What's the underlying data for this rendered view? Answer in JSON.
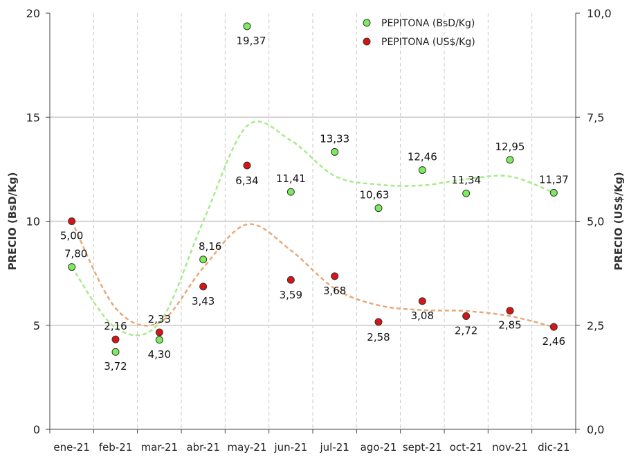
{
  "chart_data": {
    "type": "scatter",
    "categories": [
      "ene-21",
      "feb-21",
      "mar-21",
      "abr-21",
      "may-21",
      "jun-21",
      "jul-21",
      "ago-21",
      "sept-21",
      "oct-21",
      "nov-21",
      "dic-21"
    ],
    "series": [
      {
        "name": "PEPITONA (BsD/Kg)",
        "axis": "left",
        "color": "#7CEB5C",
        "trend_color": "#A6EB8A",
        "values": [
          7.8,
          3.72,
          4.3,
          8.16,
          19.37,
          11.41,
          13.33,
          10.63,
          12.46,
          11.34,
          12.95,
          11.37
        ],
        "labels": [
          "7,80",
          "3,72",
          "4,30",
          "8,16",
          "19,37",
          "11,41",
          "13,33",
          "10,63",
          "12,46",
          "11,34",
          "12,95",
          "11,37"
        ]
      },
      {
        "name": "PEPITONA (US$/Kg)",
        "axis": "right",
        "color": "#D81414",
        "trend_color": "#E8A878",
        "values": [
          5.0,
          2.16,
          2.33,
          3.43,
          6.34,
          3.59,
          3.68,
          2.58,
          3.08,
          2.72,
          2.85,
          2.46
        ],
        "labels": [
          "5,00",
          "2,16",
          "2,33",
          "3,43",
          "6,34",
          "3,59",
          "3,68",
          "2,58",
          "3,08",
          "2,72",
          "2,85",
          "2,46"
        ]
      }
    ],
    "y_left": {
      "label": "PRECIO (BsD/Kg)",
      "lim": [
        0,
        20
      ],
      "ticks": [
        "0",
        "5",
        "10",
        "15",
        "20"
      ]
    },
    "y_right": {
      "label": "PRECIO (US$/Kg)",
      "lim": [
        0,
        10
      ],
      "ticks": [
        "0,0",
        "2,5",
        "5,0",
        "7,5",
        "10,0"
      ]
    },
    "legend": "top-right",
    "grid": true
  }
}
